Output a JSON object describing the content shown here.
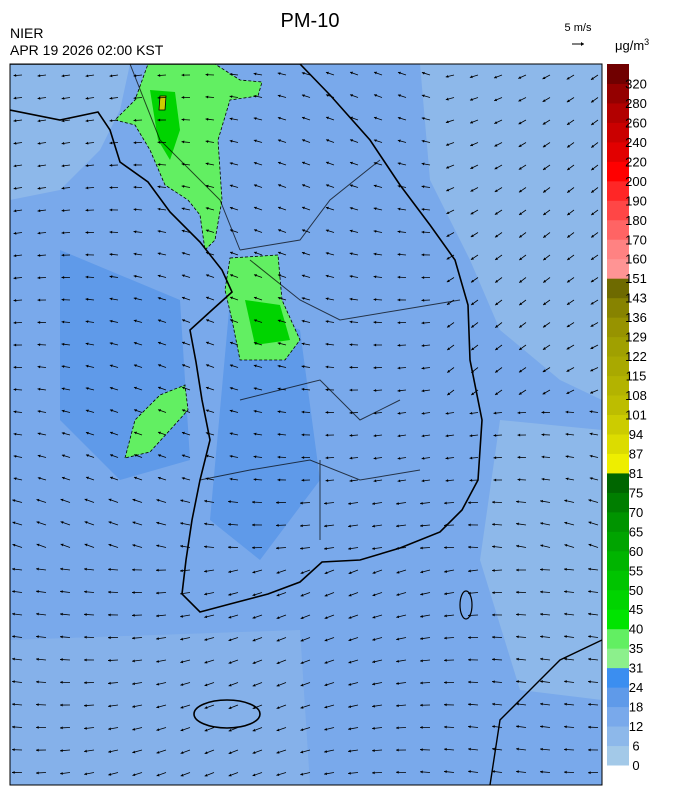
{
  "header": {
    "title": "PM-10",
    "agency": "NIER",
    "timestamp": "APR 19 2026 02:00 KST"
  },
  "wind_scale": {
    "label": "5 m/s"
  },
  "colorbar": {
    "unit_base": "μg/m",
    "unit_exponent": "3",
    "levels": [
      0,
      6,
      12,
      18,
      24,
      31,
      35,
      40,
      45,
      50,
      55,
      60,
      65,
      70,
      75,
      81,
      87,
      94,
      101,
      108,
      115,
      122,
      129,
      136,
      143,
      151,
      160,
      170,
      180,
      190,
      200,
      220,
      240,
      260,
      280,
      320
    ],
    "colors": [
      "#a3c9e8",
      "#8db8ea",
      "#79a9eb",
      "#5f9ae9",
      "#3b8ef0",
      "#8cf08c",
      "#62ef62",
      "#00e400",
      "#00d400",
      "#00c400",
      "#00b400",
      "#00a400",
      "#009400",
      "#007e00",
      "#006600",
      "#eeee00",
      "#dcdc00",
      "#cccc00",
      "#bdbd00",
      "#b3b300",
      "#a9a900",
      "#a0a000",
      "#979300",
      "#878300",
      "#6e6a00",
      "#ff9494",
      "#ff8282",
      "#ff6464",
      "#ff4646",
      "#ff2626",
      "#ff0000",
      "#e20000",
      "#ca0000",
      "#b20000",
      "#940000",
      "#700000"
    ]
  }
}
